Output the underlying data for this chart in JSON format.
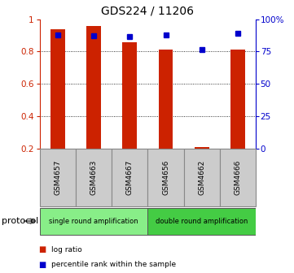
{
  "title": "GDS224 / 11206",
  "samples": [
    "GSM4657",
    "GSM4663",
    "GSM4667",
    "GSM4656",
    "GSM4662",
    "GSM4666"
  ],
  "log_ratio": [
    0.935,
    0.955,
    0.855,
    0.81,
    0.21,
    0.81
  ],
  "percentile_rank": [
    88.0,
    87.0,
    86.5,
    88.0,
    76.5,
    89.0
  ],
  "bar_color": "#cc2200",
  "dot_color": "#0000cc",
  "protocol_groups": [
    {
      "label": "single round amplification",
      "start": 0,
      "end": 3,
      "color": "#88ee88"
    },
    {
      "label": "double round amplification",
      "start": 3,
      "end": 6,
      "color": "#44cc44"
    }
  ],
  "ylim_left": [
    0.2,
    1.0
  ],
  "ylim_right": [
    0,
    100
  ],
  "yticks_left": [
    0.2,
    0.4,
    0.6,
    0.8,
    1.0
  ],
  "ytick_labels_left": [
    "0.2",
    "0.4",
    "0.6",
    "0.8",
    "1"
  ],
  "yticks_right": [
    0,
    25,
    50,
    75,
    100
  ],
  "ytick_labels_right": [
    "0",
    "25",
    "50",
    "75",
    "100%"
  ],
  "left_tick_color": "#cc2200",
  "right_tick_color": "#0000cc",
  "bar_width": 0.4,
  "legend_items": [
    {
      "label": "log ratio",
      "color": "#cc2200"
    },
    {
      "label": "percentile rank within the sample",
      "color": "#0000cc"
    }
  ],
  "protocol_label": "protocol",
  "sample_box_color": "#cccccc",
  "sample_box_edge": "#888888"
}
